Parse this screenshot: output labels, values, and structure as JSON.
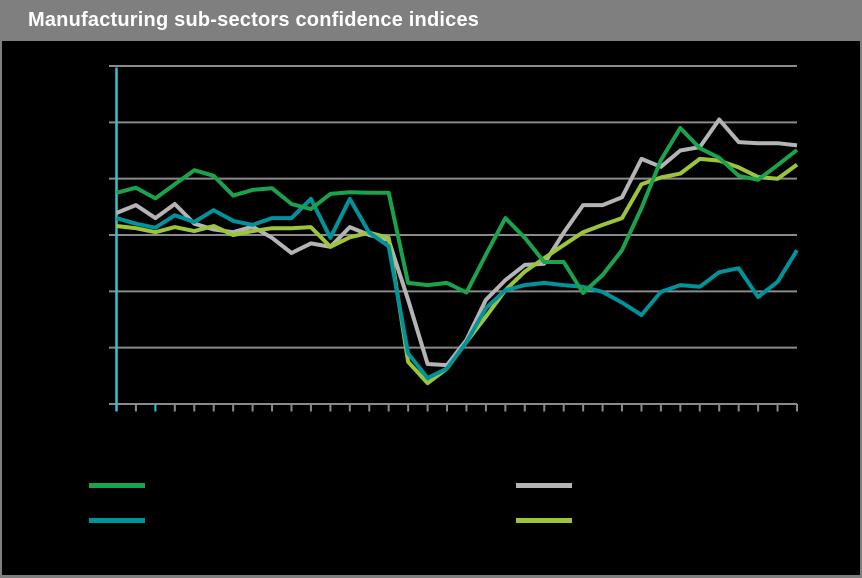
{
  "window": {
    "title": "Manufacturing sub-sectors confidence indices",
    "title_bar_color": "#7f7f7f",
    "title_text_color": "#ffffff",
    "background_color": "#000000",
    "border_color": "#7f7f7f"
  },
  "chart_data": {
    "type": "line",
    "title": "Manufacturing sub-sectors confidence indices",
    "x": [
      1,
      2,
      3,
      4,
      5,
      6,
      7,
      8,
      9,
      10,
      11,
      12,
      13,
      14,
      15,
      16,
      17,
      18,
      19,
      20,
      21,
      22,
      23,
      24,
      25,
      26,
      27,
      28,
      29,
      30,
      31,
      32,
      33,
      34,
      35,
      36
    ],
    "x_axis": {
      "tick_count": 36,
      "labels_visible": false,
      "axis_color": "#8a8a8a",
      "highlight_tick_color": "#35c2cc",
      "highlight_tick_indices": [
        0,
        2
      ]
    },
    "y_axis": {
      "labels_visible": false,
      "axis_line_color": "#35c2cc",
      "gridline_color": "#8a8a8a",
      "ylim": [
        70,
        130
      ],
      "gridline_step": 10,
      "grid_on": true
    },
    "series": [
      {
        "name": "green",
        "color": "#1ba24c",
        "values": [
          107.5,
          108.4,
          106.5,
          109.0,
          111.5,
          110.5,
          107.0,
          108.0,
          108.3,
          105.5,
          104.6,
          107.3,
          107.6,
          107.5,
          107.5,
          91.5,
          91.1,
          91.5,
          89.8,
          96.5,
          103.0,
          99.5,
          95.2,
          95.2,
          89.7,
          92.9,
          97.3,
          104.8,
          113.3,
          119.0,
          115.4,
          113.7,
          110.5,
          109.8,
          112.4,
          115.1
        ]
      },
      {
        "name": "teal",
        "color": "#00939b",
        "values": [
          103.0,
          102.0,
          101.3,
          103.5,
          102.3,
          104.4,
          102.5,
          101.8,
          103.0,
          103.0,
          106.4,
          99.5,
          106.4,
          100.4,
          98.0,
          79.0,
          74.6,
          76.3,
          81.0,
          87.0,
          90.2,
          91.1,
          91.5,
          91.1,
          90.8,
          89.9,
          88.0,
          85.8,
          89.9,
          91.1,
          90.8,
          93.4,
          94.1,
          89.0,
          91.7,
          97.3
        ]
      },
      {
        "name": "gray",
        "color": "#b4b4b7",
        "values": [
          103.9,
          105.3,
          103.0,
          105.5,
          102.0,
          101.0,
          100.5,
          101.5,
          99.5,
          96.8,
          98.5,
          97.9,
          101.4,
          100.0,
          99.1,
          88.5,
          77.1,
          76.9,
          81.4,
          88.5,
          92.0,
          94.7,
          94.9,
          100.4,
          105.3,
          105.3,
          106.7,
          113.5,
          112.1,
          115.0,
          115.6,
          120.5,
          116.5,
          116.3,
          116.3,
          115.9
        ]
      },
      {
        "name": "lime",
        "color": "#9dc53c",
        "values": [
          101.6,
          101.2,
          100.5,
          101.4,
          100.7,
          101.6,
          100.0,
          100.7,
          101.2,
          101.2,
          101.4,
          97.9,
          99.6,
          100.4,
          99.5,
          77.5,
          73.7,
          76.3,
          81.0,
          85.5,
          90.2,
          93.5,
          95.9,
          98.2,
          100.5,
          101.8,
          103.0,
          109.0,
          110.2,
          110.9,
          113.5,
          113.2,
          112.0,
          110.3,
          110.0,
          112.5
        ]
      }
    ],
    "legend": {
      "position": "bottom",
      "columns": 2,
      "labels_visible": false,
      "items": [
        {
          "series": "green"
        },
        {
          "series": "teal"
        },
        {
          "series": "gray"
        },
        {
          "series": "lime"
        }
      ]
    }
  }
}
